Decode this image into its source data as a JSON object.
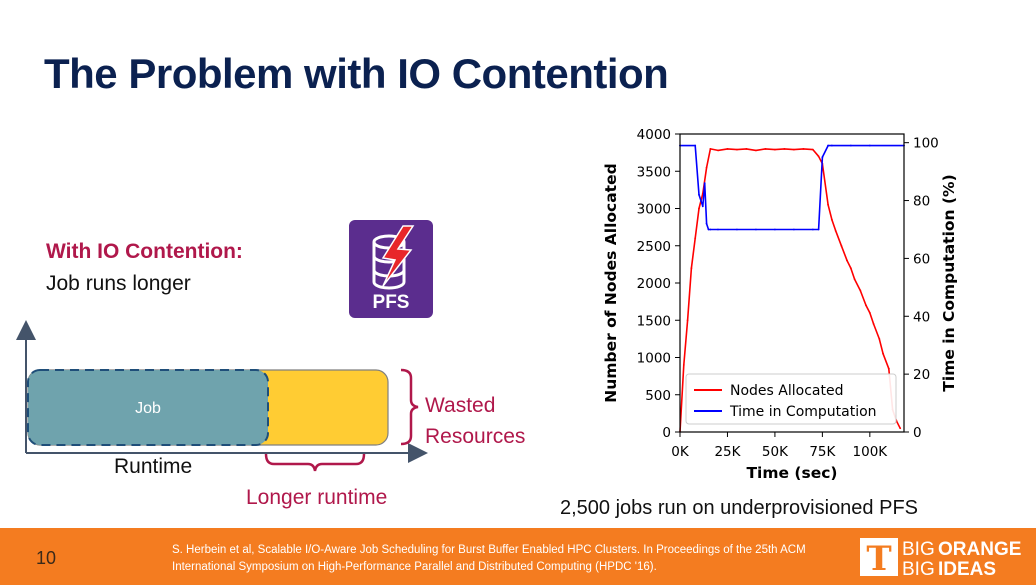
{
  "slide": {
    "title": "The Problem with IO Contention",
    "subhead": "With IO Contention:",
    "subtext": "Job runs longer",
    "caption": "2,500 jobs run on underprovisioned PFS",
    "page_number": "10",
    "citation": "S. Herbein et al, Scalable I/O-Aware Job Scheduling for Burst Buffer Enabled HPC Clusters. In Proceedings of the 25th ACM International Symposium on High-Performance Parallel and Distributed Computing (HPDC '16).",
    "logo": {
      "big": "BIG",
      "orange": "ORANGE",
      "ideas": "IDEAS",
      "letter": "T"
    },
    "colors": {
      "title": "#0b2150",
      "accent": "#b0184b",
      "footer": "#f47c20",
      "pfs_icon": "#5b2d8e",
      "job_box": "#6fa3ad",
      "extended_box": "#ffcc33"
    }
  },
  "diagram": {
    "job_label": "Job",
    "runtime_label": "Runtime",
    "longer_runtime_label": "Longer runtime",
    "wasted_label": "Wasted Resources",
    "pfs_label": "PFS",
    "pfs_icon": "database-lightning-icon"
  },
  "chart_data": {
    "type": "line",
    "xlabel": "Time (sec)",
    "ylabel": "Number of Nodes Allocated",
    "y2label": "Time in Computation (%)",
    "xlim": [
      0,
      118000
    ],
    "ylim": [
      0,
      4000
    ],
    "y2lim": [
      0,
      103
    ],
    "xticks": [
      0,
      25000,
      50000,
      75000,
      100000
    ],
    "xtick_labels": [
      "0K",
      "25K",
      "50K",
      "75K",
      "100K"
    ],
    "yticks": [
      0,
      500,
      1000,
      1500,
      2000,
      2500,
      3000,
      3500,
      4000
    ],
    "ytick_labels": [
      "0",
      "500",
      "1000",
      "1500",
      "2000",
      "2500",
      "3000",
      "3500",
      "4000"
    ],
    "y2ticks": [
      0,
      20,
      40,
      60,
      80,
      100
    ],
    "y2tick_labels": [
      "0",
      "20",
      "40",
      "60",
      "80",
      "100"
    ],
    "legend_position": "lower-center",
    "series": [
      {
        "name": "Nodes Allocated",
        "axis": "left",
        "color": "#ff0000",
        "x": [
          0,
          2000,
          4000,
          6000,
          8000,
          10000,
          12000,
          14000,
          16000,
          20000,
          25000,
          30000,
          35000,
          40000,
          45000,
          50000,
          55000,
          60000,
          65000,
          70000,
          73000,
          75000,
          78000,
          80000,
          82000,
          85000,
          88000,
          90000,
          92000,
          95000,
          98000,
          100000,
          102000,
          105000,
          107000,
          110000,
          112000,
          114000,
          116000
        ],
        "y": [
          0,
          900,
          1500,
          2200,
          2600,
          3000,
          3200,
          3550,
          3800,
          3780,
          3800,
          3790,
          3800,
          3780,
          3800,
          3790,
          3800,
          3790,
          3800,
          3790,
          3700,
          3600,
          3050,
          2850,
          2700,
          2500,
          2300,
          2200,
          2050,
          1900,
          1700,
          1600,
          1450,
          1250,
          1050,
          850,
          300,
          150,
          50
        ]
      },
      {
        "name": "Time in Computation",
        "axis": "right",
        "color": "#0000ff",
        "x": [
          0,
          8000,
          10000,
          12000,
          13000,
          14000,
          15000,
          16000,
          20000,
          30000,
          40000,
          50000,
          60000,
          70000,
          73000,
          75000,
          78000,
          80000,
          90000,
          100000,
          118000
        ],
        "y": [
          99,
          99,
          82,
          78,
          86,
          72,
          70,
          70,
          70,
          70,
          70,
          70,
          70,
          70,
          70,
          95,
          99,
          99,
          99,
          99,
          99
        ]
      }
    ]
  }
}
